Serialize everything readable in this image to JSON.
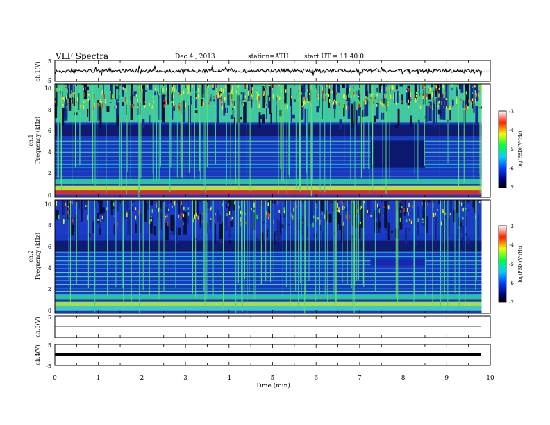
{
  "header": {
    "title": "VLF  Spectra",
    "date": "Dec.4  , 2013",
    "station": "station=ATH",
    "start": "start  UT  =   11:40:0"
  },
  "chart_data": {
    "type": "spectrogram",
    "x_axis": {
      "label": "Time  (min)",
      "range": [
        0,
        10
      ],
      "ticks": [
        "0",
        "1",
        "2",
        "3",
        "4",
        "5",
        "6",
        "7",
        "8",
        "9",
        "10"
      ]
    },
    "panels": [
      {
        "id": "ch1_waveform",
        "type": "line",
        "ylabel": "ch.1(V)",
        "ylim": [
          -5,
          5
        ],
        "ticks": [
          "5",
          "-5"
        ]
      },
      {
        "id": "ch1_spectrogram",
        "type": "heatmap",
        "ylabel_top": "ch.1",
        "ylabel": "Frequency  (kHz)",
        "ylim": [
          0,
          10
        ],
        "ticks": [
          "0",
          "2",
          "4",
          "6",
          "8",
          "10"
        ],
        "colorbar": {
          "label": "log(PSD)(V²/Hz)",
          "range": [
            -7,
            -3
          ],
          "ticks": [
            "-3",
            "-4",
            "-5",
            "-6",
            "-7"
          ]
        }
      },
      {
        "id": "ch2_spectrogram",
        "type": "heatmap",
        "ylabel_top": "ch.2",
        "ylabel": "Frequency  (kHz)",
        "ylim": [
          0,
          10
        ],
        "ticks": [
          "0",
          "2",
          "4",
          "6",
          "8",
          "10"
        ],
        "colorbar": {
          "label": "log(PSD)(V²/Hz)",
          "range": [
            -7,
            -3
          ],
          "ticks": [
            "-3",
            "-4",
            "-5",
            "-6",
            "-7"
          ]
        }
      },
      {
        "id": "ch3_waveform",
        "type": "line",
        "ylabel": "ch.3(V)",
        "ylim": [
          -5,
          5
        ],
        "ticks": [
          "5"
        ]
      },
      {
        "id": "ch4_waveform",
        "type": "line",
        "ylabel": "ch.4(V)",
        "ylim": [
          -5,
          5
        ],
        "ticks": [
          "5",
          "-5"
        ]
      }
    ],
    "data_end_min": 9.8
  },
  "colors": {
    "dark": "#00003c",
    "blue": "#1430c8",
    "cyan": "#19c8c8",
    "green": "#3cdc3c",
    "yellow": "#f0f000",
    "red": "#dc1e1e"
  }
}
